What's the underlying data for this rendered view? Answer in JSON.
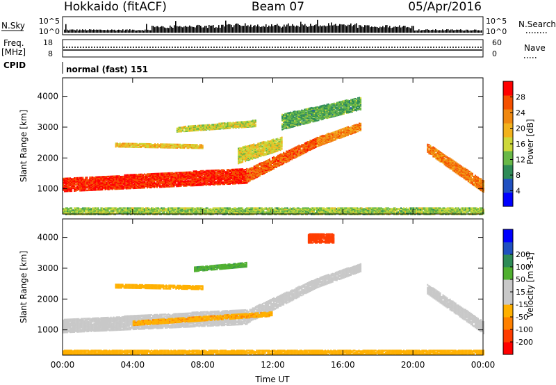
{
  "header": {
    "station": "Hokkaido (fitACF)",
    "beam": "Beam 07",
    "date": "05/Apr/2016"
  },
  "strip": {
    "nsky_label": "N.Sky",
    "nsearch_label": "N.Search",
    "freq_label_1": "Freq.",
    "freq_label_2": "[MHz]",
    "nave_label": "Nave",
    "cpid_label": "CPID",
    "cpid_text": "normal (fast) 151",
    "count_ticks_left": [
      "10^5",
      "10^0"
    ],
    "count_ticks_right": [
      "10^5",
      "10^0"
    ],
    "freq_ticks": [
      "18",
      "8"
    ],
    "nave_ticks": [
      "60",
      "0"
    ]
  },
  "colors": {
    "power_scale": [
      "#0000ff",
      "#2050c0",
      "#2e8b57",
      "#68b847",
      "#cdd83a",
      "#f2b21c",
      "#f08810",
      "#f55000",
      "#ff0000"
    ],
    "velocity_scale": [
      "#ff0000",
      "#ff3c00",
      "#ff8000",
      "#ffb000",
      "#c8c8c8",
      "#c8c8c8",
      "#50b030",
      "#2e8b57",
      "#2050c0",
      "#0000ff"
    ],
    "ground_scatter": "#c8c8c8"
  },
  "chart_data": [
    {
      "type": "heatmap",
      "name": "power",
      "ylabel": "Slant Range [km]",
      "xlabel": "",
      "x_ticks": [
        "00:00",
        "04:00",
        "08:00",
        "12:00",
        "16:00",
        "20:00",
        "00:00"
      ],
      "x_range_hours": [
        0,
        24
      ],
      "y_ticks": [
        "1000",
        "2000",
        "3000",
        "4000"
      ],
      "y_range_km": [
        180,
        4600
      ],
      "colorbar_label": "Power [dB]",
      "colorbar_ticks": [
        "4",
        "8",
        "12",
        "16",
        "20",
        "24",
        "28"
      ],
      "colorbar_range": [
        0,
        32
      ],
      "bands": [
        {
          "t": [
            0,
            10.5
          ],
          "r_center": [
            1150,
            1450
          ],
          "width": [
            420,
            480
          ],
          "value": 29
        },
        {
          "t": [
            10.5,
            14.5
          ],
          "r_center": [
            1450,
            2550
          ],
          "width": [
            420,
            300
          ],
          "value": 26
        },
        {
          "t": [
            14.5,
            17
          ],
          "r_center": [
            2550,
            3050
          ],
          "width": [
            300,
            250
          ],
          "value": 23
        },
        {
          "t": [
            20.8,
            24
          ],
          "r_center": [
            2350,
            1100
          ],
          "width": [
            300,
            380
          ],
          "value": 24
        },
        {
          "t": [
            3,
            8
          ],
          "r_center": [
            2450,
            2400
          ],
          "width": [
            120,
            120
          ],
          "value": 19
        },
        {
          "t": [
            6.5,
            11
          ],
          "r_center": [
            2950,
            3150
          ],
          "width": [
            150,
            200
          ],
          "value": 16
        },
        {
          "t": [
            10,
            12.5
          ],
          "r_center": [
            2100,
            2500
          ],
          "width": [
            500,
            400
          ],
          "value": 17
        },
        {
          "t": [
            12.5,
            17
          ],
          "r_center": [
            3200,
            3800
          ],
          "width": [
            500,
            400
          ],
          "value": 11
        },
        {
          "t": [
            0,
            24
          ],
          "r_center": [
            300,
            300
          ],
          "width": [
            200,
            200
          ],
          "value": 14
        }
      ]
    },
    {
      "type": "heatmap",
      "name": "velocity",
      "ylabel": "Slant Range [km]",
      "xlabel": "Time UT",
      "x_ticks": [
        "00:00",
        "04:00",
        "08:00",
        "12:00",
        "16:00",
        "20:00",
        "00:00"
      ],
      "x_range_hours": [
        0,
        24
      ],
      "y_ticks": [
        "1000",
        "2000",
        "3000",
        "4000"
      ],
      "y_range_km": [
        180,
        4600
      ],
      "colorbar_label": "Velocity [m s-1]",
      "colorbar_ticks": [
        "-200",
        "-100",
        "-50",
        "-15",
        "15",
        "50",
        "100",
        "200"
      ],
      "colorbar_range": [
        -250,
        250
      ],
      "bands": [
        {
          "t": [
            0,
            10.5
          ],
          "r_center": [
            1150,
            1450
          ],
          "width": [
            420,
            480
          ],
          "value": 0
        },
        {
          "t": [
            10.5,
            14.5
          ],
          "r_center": [
            1450,
            2550
          ],
          "width": [
            420,
            300
          ],
          "value": 0
        },
        {
          "t": [
            14.5,
            17
          ],
          "r_center": [
            2550,
            3050
          ],
          "width": [
            300,
            250
          ],
          "value": 0
        },
        {
          "t": [
            20.8,
            24
          ],
          "r_center": [
            2350,
            1100
          ],
          "width": [
            300,
            380
          ],
          "value": 0
        },
        {
          "t": [
            4,
            12
          ],
          "r_center": [
            1250,
            1550
          ],
          "width": [
            150,
            150
          ],
          "value": -40
        },
        {
          "t": [
            3,
            8
          ],
          "r_center": [
            2450,
            2400
          ],
          "width": [
            120,
            120
          ],
          "value": -30
        },
        {
          "t": [
            7.5,
            10.5
          ],
          "r_center": [
            3000,
            3150
          ],
          "width": [
            150,
            150
          ],
          "value": 40
        },
        {
          "t": [
            14,
            15.5
          ],
          "r_center": [
            4000,
            4000
          ],
          "width": [
            300,
            300
          ],
          "value": -120
        },
        {
          "t": [
            0,
            24
          ],
          "r_center": [
            300,
            300
          ],
          "width": [
            150,
            150
          ],
          "value": -30
        }
      ]
    }
  ]
}
